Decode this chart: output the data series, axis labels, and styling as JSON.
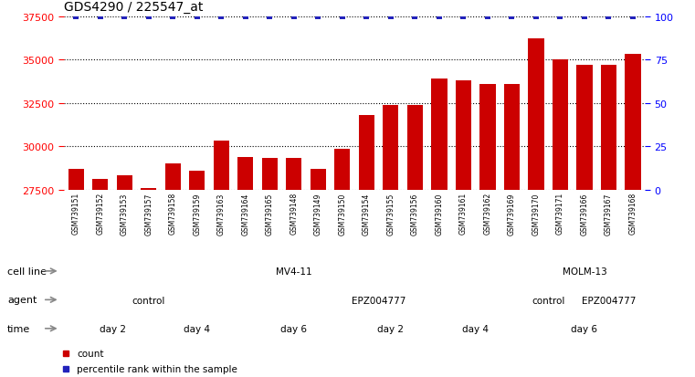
{
  "title": "GDS4290 / 225547_at",
  "samples": [
    "GSM739151",
    "GSM739152",
    "GSM739153",
    "GSM739157",
    "GSM739158",
    "GSM739159",
    "GSM739163",
    "GSM739164",
    "GSM739165",
    "GSM739148",
    "GSM739149",
    "GSM739150",
    "GSM739154",
    "GSM739155",
    "GSM739156",
    "GSM739160",
    "GSM739161",
    "GSM739162",
    "GSM739169",
    "GSM739170",
    "GSM739171",
    "GSM739166",
    "GSM739167",
    "GSM739168"
  ],
  "counts": [
    28700,
    28100,
    28300,
    27600,
    29000,
    28600,
    30300,
    29400,
    29300,
    29300,
    28700,
    29850,
    31800,
    32400,
    32400,
    33900,
    33800,
    33600,
    33600,
    36200,
    35000,
    34700,
    34700,
    35300
  ],
  "percentile": [
    100,
    100,
    100,
    100,
    100,
    100,
    100,
    100,
    100,
    100,
    100,
    100,
    100,
    100,
    100,
    100,
    100,
    100,
    100,
    100,
    100,
    100,
    100,
    100
  ],
  "bar_color": "#cc0000",
  "dot_color": "#2222bb",
  "ylim_left": [
    27500,
    37500
  ],
  "yticks_left": [
    27500,
    30000,
    32500,
    35000,
    37500
  ],
  "ylim_right": [
    0,
    100
  ],
  "yticks_right": [
    0,
    25,
    50,
    75,
    100
  ],
  "cell_line_segments": [
    {
      "label": "MV4-11",
      "start": 0,
      "end": 19,
      "color": "#99dd99"
    },
    {
      "label": "MOLM-13",
      "start": 19,
      "end": 24,
      "color": "#44cc44"
    }
  ],
  "agent_segments": [
    {
      "label": "control",
      "start": 0,
      "end": 7,
      "color": "#bbbbee"
    },
    {
      "label": "EPZ004777",
      "start": 7,
      "end": 19,
      "color": "#9999dd"
    },
    {
      "label": "control",
      "start": 19,
      "end": 21,
      "color": "#bbbbee"
    },
    {
      "label": "EPZ004777",
      "start": 21,
      "end": 24,
      "color": "#9999dd"
    }
  ],
  "time_segments": [
    {
      "label": "day 2",
      "start": 0,
      "end": 4,
      "color": "#f5cccc"
    },
    {
      "label": "day 4",
      "start": 4,
      "end": 7,
      "color": "#e09090"
    },
    {
      "label": "day 6",
      "start": 7,
      "end": 12,
      "color": "#eeaaaa"
    },
    {
      "label": "day 2",
      "start": 12,
      "end": 15,
      "color": "#f5cccc"
    },
    {
      "label": "day 4",
      "start": 15,
      "end": 19,
      "color": "#e09090"
    },
    {
      "label": "day 6",
      "start": 19,
      "end": 24,
      "color": "#cc7777"
    }
  ],
  "bg_color": "#ffffff",
  "tick_bg_color": "#cccccc"
}
